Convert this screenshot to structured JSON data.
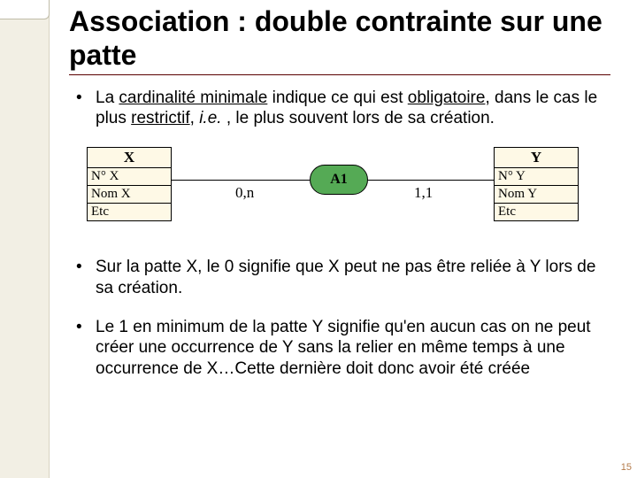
{
  "slide": {
    "title": "Association : double contrainte sur une patte",
    "page_number": "15",
    "sidebar_bg": "#f2efe4"
  },
  "bullets": {
    "b1_pre": "La ",
    "b1_u1": "cardinalité minimale",
    "b1_mid1": " indique ce qui est ",
    "b1_u2": "obligatoire",
    "b1_mid2": ", dans le cas  le plus ",
    "b1_u3": "restrictif",
    "b1_mid3": ", ",
    "b1_ie": "i.e.",
    "b1_end": " , le plus souvent lors de sa création.",
    "b2": "Sur la patte X, le 0 signifie que X peut ne pas être reliée à Y lors de sa création.",
    "b3": "Le 1 en minimum de la patte Y signifie qu'en aucun cas on ne peut créer une occurrence de Y sans la relier en même temps à une occurrence de X…Cette dernière doit donc avoir été créée"
  },
  "diagram": {
    "type": "er-association",
    "background_color": "#fef9e6",
    "assoc_color": "#55aa55",
    "line_color": "#000000",
    "font_family": "Times New Roman",
    "entity_x": {
      "name": "X",
      "attrs": [
        "N° X",
        "Nom X",
        "Etc"
      ]
    },
    "entity_y": {
      "name": "Y",
      "attrs": [
        "N° Y",
        "Nom Y",
        "Etc"
      ]
    },
    "association": {
      "label": "A1"
    },
    "cardinality_left": "0,n",
    "cardinality_right": "1,1"
  }
}
